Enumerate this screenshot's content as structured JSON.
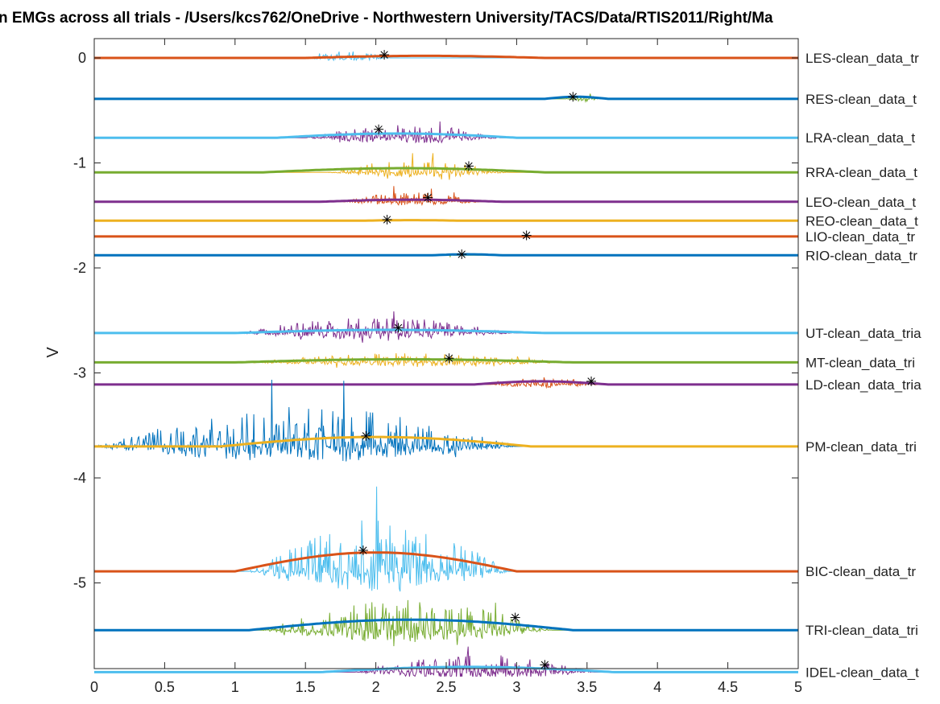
{
  "chart_data": {
    "type": "line",
    "title": "n EMGs across all trials - /Users/kcs762/OneDrive - Northwestern University/TACS/Data/RTIS2011/Right/Ma",
    "xlabel": "",
    "ylabel": "V",
    "xlim": [
      0,
      5
    ],
    "ylim": [
      -5.88,
      0.2
    ],
    "x_ticks": [
      "0",
      "0.5",
      "1",
      "1.5",
      "2",
      "2.5",
      "3",
      "3.5",
      "4",
      "4.5",
      "5"
    ],
    "y_ticks": [
      "0",
      "-1",
      "-2",
      "-3",
      "-4",
      "-5"
    ],
    "grid": false,
    "colors": {
      "orange": "#D95319",
      "blue": "#0072BD",
      "lightblue": "#4DBEEE",
      "green": "#77AC30",
      "purple": "#7E2F8E",
      "yellow": "#EDB120"
    },
    "channels": [
      {
        "label": "LES-clean_data_tr",
        "baseline": 0.0,
        "line_color": "orange",
        "burst_color": "lightblue",
        "burst_start": 1.5,
        "burst_end": 2.1,
        "burst_amp": 0.07,
        "bump_start": 1.5,
        "bump_end": 3.2,
        "bump_amp": 0.02,
        "marker_x": 2.06,
        "marker_y": 0.03
      },
      {
        "label": "RES-clean_data_t",
        "baseline": -0.39,
        "line_color": "blue",
        "burst_color": "green",
        "burst_start": 3.35,
        "burst_end": 3.6,
        "burst_amp": 0.07,
        "bump_start": 3.2,
        "bump_end": 3.65,
        "bump_amp": 0.02,
        "marker_x": 3.4,
        "marker_y": -0.37
      },
      {
        "label": "LRA-clean_data_t",
        "baseline": -0.76,
        "line_color": "lightblue",
        "burst_color": "purple",
        "burst_start": 1.5,
        "burst_end": 2.9,
        "burst_amp": 0.14,
        "bump_start": 1.3,
        "bump_end": 3.0,
        "bump_amp": 0.04,
        "marker_x": 2.02,
        "marker_y": -0.68
      },
      {
        "label": "RRA-clean_data_t",
        "baseline": -1.09,
        "line_color": "green",
        "burst_color": "yellow",
        "burst_start": 1.65,
        "burst_end": 2.95,
        "burst_amp": 0.12,
        "bump_start": 1.2,
        "bump_end": 3.2,
        "bump_amp": 0.04,
        "marker_x": 2.66,
        "marker_y": -1.03
      },
      {
        "label": "LEO-clean_data_t",
        "baseline": -1.37,
        "line_color": "purple",
        "burst_color": "orange",
        "burst_start": 1.75,
        "burst_end": 2.75,
        "burst_amp": 0.09,
        "bump_start": 1.6,
        "bump_end": 2.9,
        "bump_amp": 0.02,
        "marker_x": 2.37,
        "marker_y": -1.33
      },
      {
        "label": "REO-clean_data_t",
        "baseline": -1.55,
        "line_color": "yellow",
        "burst_color": "blue",
        "burst_start": 2.05,
        "burst_end": 2.15,
        "burst_amp": 0.03,
        "bump_start": 1.9,
        "bump_end": 2.6,
        "bump_amp": 0.005,
        "marker_x": 2.08,
        "marker_y": -1.54
      },
      {
        "label": "LIO-clean_data_tr",
        "baseline": -1.7,
        "line_color": "orange",
        "burst_color": "orange",
        "burst_start": 3.0,
        "burst_end": 3.1,
        "burst_amp": 0.0,
        "bump_start": 2.9,
        "bump_end": 3.2,
        "bump_amp": 0.0,
        "marker_x": 3.07,
        "marker_y": -1.69
      },
      {
        "label": "RIO-clean_data_tr",
        "baseline": -1.88,
        "line_color": "blue",
        "burst_color": "green",
        "burst_start": 2.5,
        "burst_end": 2.55,
        "burst_amp": 0.04,
        "bump_start": 2.4,
        "bump_end": 2.9,
        "bump_amp": 0.01,
        "marker_x": 2.61,
        "marker_y": -1.87
      },
      {
        "label": "UT-clean_data_tria",
        "baseline": -2.62,
        "line_color": "lightblue",
        "burst_color": "purple",
        "burst_start": 1.0,
        "burst_end": 3.0,
        "burst_amp": 0.15,
        "bump_start": 1.0,
        "bump_end": 3.2,
        "bump_amp": 0.03,
        "marker_x": 2.16,
        "marker_y": -2.57
      },
      {
        "label": "MT-clean_data_tri",
        "baseline": -2.9,
        "line_color": "green",
        "burst_color": "yellow",
        "burst_start": 1.05,
        "burst_end": 3.35,
        "burst_amp": 0.09,
        "bump_start": 1.0,
        "bump_end": 3.4,
        "bump_amp": 0.03,
        "marker_x": 2.52,
        "marker_y": -2.86
      },
      {
        "label": "LD-clean_data_tria",
        "baseline": -3.11,
        "line_color": "purple",
        "burst_color": "orange",
        "burst_start": 2.8,
        "burst_end": 3.6,
        "burst_amp": 0.07,
        "bump_start": 2.7,
        "bump_end": 3.65,
        "bump_amp": 0.03,
        "marker_x": 3.53,
        "marker_y": -3.08
      },
      {
        "label": "PM-clean_data_tri",
        "baseline": -3.7,
        "line_color": "yellow",
        "burst_color": "blue",
        "burst_start": 0.0,
        "burst_end": 3.0,
        "burst_amp": 0.38,
        "bump_start": 0.9,
        "bump_end": 3.1,
        "bump_amp": 0.09,
        "marker_x": 1.93,
        "marker_y": -3.6
      },
      {
        "label": "BIC-clean_data_tr",
        "baseline": -4.89,
        "line_color": "orange",
        "burst_color": "lightblue",
        "burst_start": 1.1,
        "burst_end": 2.95,
        "burst_amp": 0.5,
        "bump_start": 1.0,
        "bump_end": 3.0,
        "bump_amp": 0.18,
        "marker_x": 1.91,
        "marker_y": -4.69
      },
      {
        "label": "TRI-clean_data_tri",
        "baseline": -5.45,
        "line_color": "blue",
        "burst_color": "green",
        "burst_start": 1.2,
        "burst_end": 3.25,
        "burst_amp": 0.3,
        "bump_start": 1.1,
        "bump_end": 3.4,
        "bump_amp": 0.1,
        "marker_x": 2.99,
        "marker_y": -5.33
      },
      {
        "label": "IDEL-clean_data_t",
        "baseline": -5.85,
        "line_color": "lightblue",
        "burst_color": "purple",
        "burst_start": 1.85,
        "burst_end": 3.55,
        "burst_amp": 0.17,
        "bump_start": 1.6,
        "bump_end": 3.7,
        "bump_amp": 0.05,
        "marker_x": 3.2,
        "marker_y": -5.78
      }
    ]
  }
}
